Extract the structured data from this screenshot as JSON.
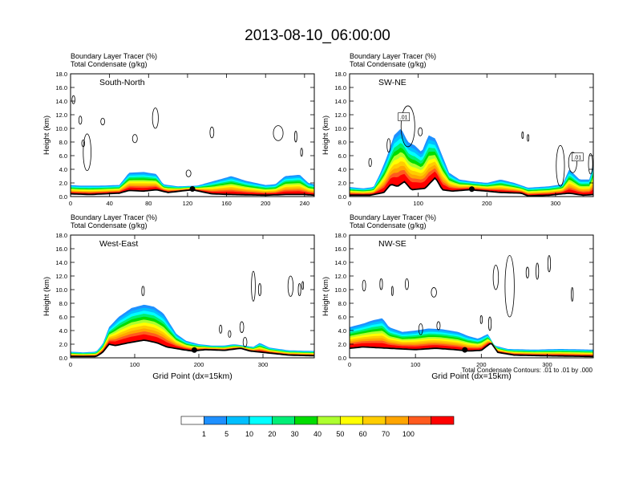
{
  "title": "2013-08-10_06:00:00",
  "colorbar": {
    "levels": [
      "1",
      "5",
      "10",
      "20",
      "30",
      "40",
      "50",
      "60",
      "70",
      "100"
    ],
    "colors": [
      "#ffffff",
      "#1e90ff",
      "#00bfff",
      "#00ffff",
      "#00ee76",
      "#00dd00",
      "#adff2f",
      "#ffff00",
      "#ffcd00",
      "#ffa500",
      "#ff5a1e",
      "#ff0000"
    ]
  },
  "footnote": "Total Condensate Contours: .01 to .01 by .000",
  "contour_label": ".01",
  "chart_data": [
    {
      "type": "heatmap",
      "section": "South-North",
      "header_line1": "Boundary Layer Tracer   (%)",
      "header_line2": "Total Condensate   (g/kg)",
      "ylabel": "Height (km)",
      "xlabel": "",
      "xlim": [
        0,
        250
      ],
      "ylim": [
        0,
        18
      ],
      "xticks": [
        0,
        40,
        80,
        120,
        160,
        200,
        240
      ],
      "yticks": [
        "0.0",
        "2.0",
        "4.0",
        "6.0",
        "8.0",
        "10.0",
        "12.0",
        "14.0",
        "16.0",
        "18.0"
      ],
      "boundary_layer_top_km": [
        [
          0,
          1.7
        ],
        [
          10,
          1.6
        ],
        [
          30,
          1.6
        ],
        [
          50,
          1.7
        ],
        [
          60,
          3.5
        ],
        [
          75,
          3.6
        ],
        [
          88,
          3.3
        ],
        [
          95,
          1.8
        ],
        [
          110,
          1.5
        ],
        [
          130,
          1.6
        ],
        [
          150,
          2.4
        ],
        [
          165,
          3.0
        ],
        [
          180,
          2.3
        ],
        [
          200,
          1.7
        ],
        [
          210,
          1.8
        ],
        [
          220,
          3.0
        ],
        [
          235,
          3.2
        ],
        [
          244,
          2.0
        ],
        [
          250,
          1.8
        ]
      ],
      "terrain_km": [
        [
          0,
          0.4
        ],
        [
          20,
          0.3
        ],
        [
          50,
          0.5
        ],
        [
          60,
          0.9
        ],
        [
          75,
          0.8
        ],
        [
          88,
          1.0
        ],
        [
          100,
          0.6
        ],
        [
          125,
          1.0
        ],
        [
          145,
          0.4
        ],
        [
          165,
          0.3
        ],
        [
          200,
          0.2
        ],
        [
          220,
          0.3
        ],
        [
          240,
          0.3
        ],
        [
          250,
          0.2
        ]
      ],
      "marker_x": 125,
      "condensate_contours": [
        {
          "cx": 3,
          "cy": 14.2,
          "rx": 1.5,
          "ry": 0.6
        },
        {
          "cx": 10,
          "cy": 11.2,
          "rx": 1.5,
          "ry": 0.6
        },
        {
          "cx": 17,
          "cy": 6.5,
          "rx": 4,
          "ry": 2.7
        },
        {
          "cx": 13,
          "cy": 7.8,
          "rx": 1.5,
          "ry": 0.5
        },
        {
          "cx": 33,
          "cy": 11.0,
          "rx": 2,
          "ry": 0.5
        },
        {
          "cx": 66,
          "cy": 8.5,
          "rx": 2.5,
          "ry": 0.6
        },
        {
          "cx": 87,
          "cy": 11.5,
          "rx": 3,
          "ry": 1.5
        },
        {
          "cx": 121,
          "cy": 3.4,
          "rx": 2.5,
          "ry": 0.5
        },
        {
          "cx": 145,
          "cy": 9.4,
          "rx": 2,
          "ry": 0.8
        },
        {
          "cx": 213,
          "cy": 9.3,
          "rx": 5,
          "ry": 1.1
        },
        {
          "cx": 231,
          "cy": 8.8,
          "rx": 1.2,
          "ry": 0.8
        },
        {
          "cx": 237,
          "cy": 6.5,
          "rx": 1.0,
          "ry": 0.6
        }
      ],
      "value_labels": []
    },
    {
      "type": "heatmap",
      "section": "SW-NE",
      "header_line1": "Boundary Layer Tracer   (%)",
      "header_line2": "Total Condensate   (g/kg)",
      "ylabel": "Height (km)",
      "xlabel": "",
      "xlim": [
        0,
        355
      ],
      "ylim": [
        0,
        18
      ],
      "xticks": [
        0,
        100,
        200,
        300
      ],
      "yticks": [
        "0.0",
        "2.0",
        "4.0",
        "6.0",
        "8.0",
        "10.0",
        "12.0",
        "14.0",
        "16.0",
        "18.0"
      ],
      "boundary_layer_top_km": [
        [
          0,
          1.4
        ],
        [
          20,
          1.2
        ],
        [
          35,
          1.4
        ],
        [
          45,
          3.5
        ],
        [
          55,
          6.0
        ],
        [
          65,
          9.0
        ],
        [
          75,
          10.0
        ],
        [
          85,
          8.0
        ],
        [
          95,
          7.5
        ],
        [
          105,
          6.5
        ],
        [
          115,
          9.0
        ],
        [
          125,
          8.5
        ],
        [
          135,
          6.0
        ],
        [
          145,
          3.5
        ],
        [
          160,
          2.5
        ],
        [
          180,
          2.2
        ],
        [
          200,
          2.0
        ],
        [
          220,
          2.5
        ],
        [
          240,
          2.0
        ],
        [
          260,
          1.3
        ],
        [
          290,
          1.5
        ],
        [
          310,
          1.8
        ],
        [
          320,
          4.0
        ],
        [
          335,
          2.5
        ],
        [
          350,
          2.5
        ],
        [
          355,
          5.0
        ]
      ],
      "terrain_km": [
        [
          0,
          0.2
        ],
        [
          30,
          0.2
        ],
        [
          50,
          0.6
        ],
        [
          60,
          1.8
        ],
        [
          70,
          1.5
        ],
        [
          80,
          2.2
        ],
        [
          90,
          1.0
        ],
        [
          110,
          1.2
        ],
        [
          125,
          2.8
        ],
        [
          135,
          1.0
        ],
        [
          150,
          0.8
        ],
        [
          175,
          1.0
        ],
        [
          200,
          0.8
        ],
        [
          220,
          0.6
        ],
        [
          250,
          0.5
        ],
        [
          260,
          0.1
        ],
        [
          290,
          0.2
        ],
        [
          320,
          0.5
        ],
        [
          340,
          0.2
        ],
        [
          355,
          0.3
        ]
      ],
      "marker_x": 178,
      "condensate_contours": [
        {
          "cx": 30,
          "cy": 5.0,
          "rx": 2,
          "ry": 0.6
        },
        {
          "cx": 57,
          "cy": 7.5,
          "rx": 2.5,
          "ry": 1.0
        },
        {
          "cx": 85,
          "cy": 10.3,
          "rx": 10,
          "ry": 3.0
        },
        {
          "cx": 103,
          "cy": 9.5,
          "rx": 3,
          "ry": 0.6
        },
        {
          "cx": 252,
          "cy": 9.0,
          "rx": 1.2,
          "ry": 0.5
        },
        {
          "cx": 260,
          "cy": 8.6,
          "rx": 1.2,
          "ry": 0.5
        },
        {
          "cx": 307,
          "cy": 4.5,
          "rx": 6,
          "ry": 3.0
        },
        {
          "cx": 325,
          "cy": 5.0,
          "rx": 6,
          "ry": 1.5
        },
        {
          "cx": 351,
          "cy": 4.8,
          "rx": 3,
          "ry": 1.5
        }
      ],
      "value_labels": [
        {
          "x": 79,
          "y": 11.7
        },
        {
          "x": 332,
          "y": 5.8
        }
      ]
    },
    {
      "type": "heatmap",
      "section": "West-East",
      "header_line1": "Boundary Layer Tracer   (%)",
      "header_line2": "Total Condensate   (g/kg)",
      "ylabel": "Height (km)",
      "xlabel": "Grid Point (dx=15km)",
      "xlim": [
        0,
        380
      ],
      "ylim": [
        0,
        18
      ],
      "xticks": [
        0,
        100,
        200,
        300
      ],
      "yticks": [
        "0.0",
        "2.0",
        "4.0",
        "6.0",
        "8.0",
        "10.0",
        "12.0",
        "14.0",
        "16.0",
        "18.0"
      ],
      "boundary_layer_top_km": [
        [
          0,
          0.9
        ],
        [
          20,
          0.8
        ],
        [
          40,
          0.9
        ],
        [
          50,
          2.0
        ],
        [
          60,
          4.5
        ],
        [
          75,
          6.0
        ],
        [
          95,
          7.3
        ],
        [
          115,
          7.8
        ],
        [
          130,
          7.5
        ],
        [
          145,
          6.5
        ],
        [
          155,
          5.0
        ],
        [
          165,
          3.5
        ],
        [
          180,
          2.5
        ],
        [
          200,
          2.0
        ],
        [
          220,
          1.8
        ],
        [
          240,
          1.8
        ],
        [
          255,
          2.0
        ],
        [
          270,
          1.8
        ],
        [
          285,
          1.6
        ],
        [
          295,
          2.2
        ],
        [
          310,
          1.5
        ],
        [
          340,
          1.1
        ],
        [
          380,
          1.0
        ]
      ],
      "terrain_km": [
        [
          0,
          0.2
        ],
        [
          40,
          0.2
        ],
        [
          50,
          0.8
        ],
        [
          60,
          2.0
        ],
        [
          70,
          1.8
        ],
        [
          90,
          2.2
        ],
        [
          115,
          2.6
        ],
        [
          135,
          2.2
        ],
        [
          150,
          1.6
        ],
        [
          175,
          1.2
        ],
        [
          190,
          1.0
        ],
        [
          210,
          1.2
        ],
        [
          240,
          1.1
        ],
        [
          265,
          1.4
        ],
        [
          280,
          1.0
        ],
        [
          300,
          0.8
        ],
        [
          340,
          0.4
        ],
        [
          380,
          0.3
        ]
      ],
      "marker_x": 193,
      "condensate_contours": [
        {
          "cx": 113,
          "cy": 9.8,
          "rx": 2,
          "ry": 0.7
        },
        {
          "cx": 234,
          "cy": 4.2,
          "rx": 2,
          "ry": 0.6
        },
        {
          "cx": 248,
          "cy": 3.5,
          "rx": 2,
          "ry": 0.5
        },
        {
          "cx": 267,
          "cy": 4.5,
          "rx": 3,
          "ry": 0.8
        },
        {
          "cx": 272,
          "cy": 2.3,
          "rx": 3,
          "ry": 0.7
        },
        {
          "cx": 285,
          "cy": 10.5,
          "rx": 3,
          "ry": 2.2
        },
        {
          "cx": 295,
          "cy": 10.0,
          "rx": 2,
          "ry": 0.9
        },
        {
          "cx": 343,
          "cy": 10.5,
          "rx": 4,
          "ry": 1.5
        },
        {
          "cx": 357,
          "cy": 10.0,
          "rx": 2,
          "ry": 0.9
        },
        {
          "cx": 362,
          "cy": 10.6,
          "rx": 1.2,
          "ry": 0.6
        }
      ],
      "value_labels": []
    },
    {
      "type": "heatmap",
      "section": "NW-SE",
      "header_line1": "Boundary Layer Tracer   (%)",
      "header_line2": "Total Condensate   (g/kg)",
      "ylabel": "Height (km)",
      "xlabel": "Grid Point (dx=15km)",
      "xlim": [
        0,
        370
      ],
      "ylim": [
        0,
        18
      ],
      "xticks": [
        0,
        100,
        200,
        300
      ],
      "yticks": [
        "0.0",
        "2.0",
        "4.0",
        "6.0",
        "8.0",
        "10.0",
        "12.0",
        "14.0",
        "16.0",
        "18.0"
      ],
      "boundary_layer_top_km": [
        [
          0,
          4.5
        ],
        [
          20,
          5.0
        ],
        [
          35,
          5.5
        ],
        [
          50,
          5.8
        ],
        [
          60,
          4.5
        ],
        [
          80,
          3.8
        ],
        [
          100,
          4.0
        ],
        [
          120,
          4.3
        ],
        [
          140,
          4.2
        ],
        [
          165,
          3.8
        ],
        [
          180,
          3.2
        ],
        [
          195,
          2.8
        ],
        [
          210,
          3.5
        ],
        [
          220,
          1.8
        ],
        [
          240,
          1.3
        ],
        [
          280,
          1.2
        ],
        [
          320,
          1.3
        ],
        [
          370,
          1.2
        ]
      ],
      "terrain_km": [
        [
          0,
          1.4
        ],
        [
          20,
          1.6
        ],
        [
          40,
          1.5
        ],
        [
          60,
          1.4
        ],
        [
          80,
          1.3
        ],
        [
          100,
          1.2
        ],
        [
          130,
          1.4
        ],
        [
          160,
          1.2
        ],
        [
          180,
          1.0
        ],
        [
          200,
          1.1
        ],
        [
          215,
          2.2
        ],
        [
          225,
          0.8
        ],
        [
          250,
          0.4
        ],
        [
          300,
          0.3
        ],
        [
          370,
          0.2
        ]
      ],
      "marker_x": 175,
      "condensate_contours": [
        {
          "cx": 22,
          "cy": 10.6,
          "rx": 2.5,
          "ry": 0.8
        },
        {
          "cx": 48,
          "cy": 10.8,
          "rx": 2,
          "ry": 0.8
        },
        {
          "cx": 65,
          "cy": 9.8,
          "rx": 1.2,
          "ry": 0.7
        },
        {
          "cx": 87,
          "cy": 10.8,
          "rx": 2.5,
          "ry": 0.8
        },
        {
          "cx": 128,
          "cy": 9.6,
          "rx": 4,
          "ry": 0.7
        },
        {
          "cx": 108,
          "cy": 4.2,
          "rx": 3,
          "ry": 0.8
        },
        {
          "cx": 135,
          "cy": 4.7,
          "rx": 2.5,
          "ry": 0.6
        },
        {
          "cx": 200,
          "cy": 5.6,
          "rx": 1.5,
          "ry": 0.6
        },
        {
          "cx": 213,
          "cy": 5.0,
          "rx": 2,
          "ry": 1.0
        },
        {
          "cx": 222,
          "cy": 11.8,
          "rx": 4,
          "ry": 1.8
        },
        {
          "cx": 243,
          "cy": 10.5,
          "rx": 7,
          "ry": 4.5
        },
        {
          "cx": 270,
          "cy": 12.5,
          "rx": 2,
          "ry": 0.8
        },
        {
          "cx": 285,
          "cy": 12.7,
          "rx": 2,
          "ry": 1.2
        },
        {
          "cx": 303,
          "cy": 13.8,
          "rx": 2,
          "ry": 1.2
        },
        {
          "cx": 338,
          "cy": 9.3,
          "rx": 1.5,
          "ry": 1.0
        }
      ],
      "value_labels": []
    }
  ]
}
